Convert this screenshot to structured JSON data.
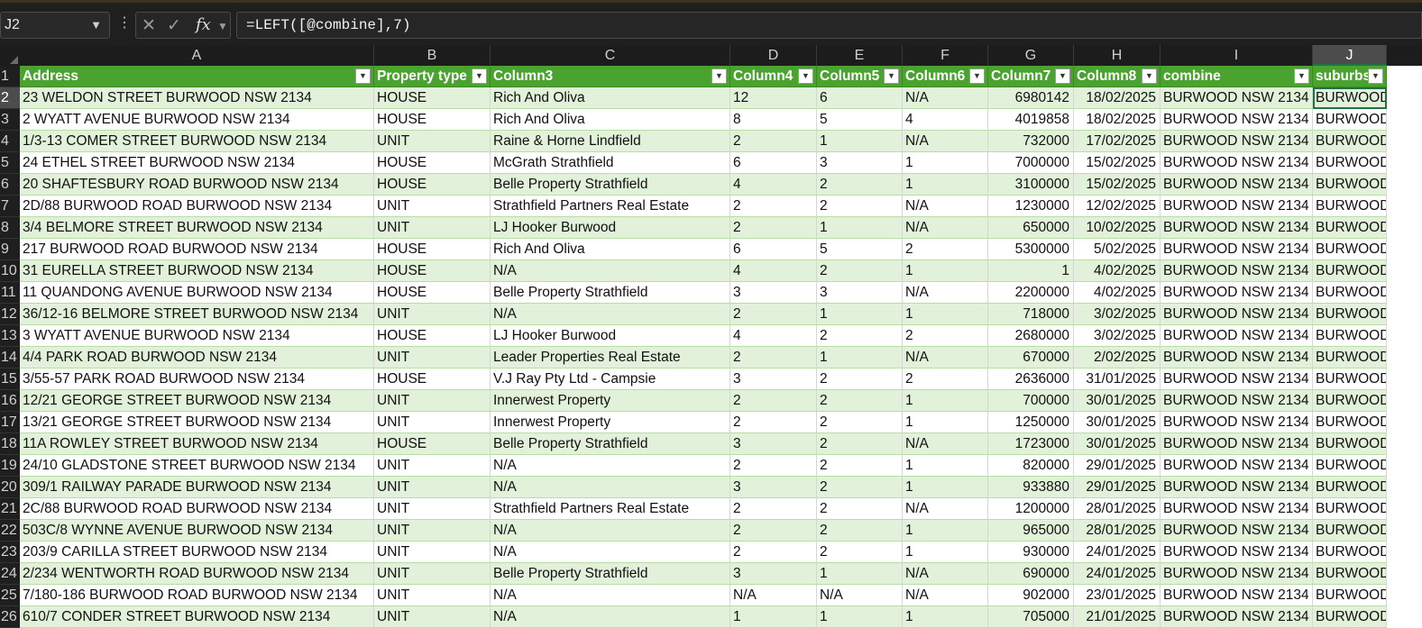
{
  "name_box": {
    "value": "J2"
  },
  "formula_bar": {
    "more_glyph": "⋮",
    "cancel_glyph": "✕",
    "enter_glyph": "✓",
    "fx_label": "fx",
    "formula": "=LEFT([@combine],7)"
  },
  "columns": [
    "A",
    "B",
    "C",
    "D",
    "E",
    "F",
    "G",
    "H",
    "I",
    "J"
  ],
  "selected_column": "J",
  "row_numbers": [
    "1",
    "2",
    "3",
    "4",
    "5",
    "6",
    "7",
    "8",
    "9",
    "10",
    "11",
    "12",
    "13",
    "14",
    "15",
    "16",
    "17",
    "18",
    "19",
    "20",
    "21",
    "22",
    "23",
    "24",
    "25",
    "26"
  ],
  "selected_row": "2",
  "table": {
    "headers": [
      "Address",
      "Property type",
      "Column3",
      "Column4",
      "Column5",
      "Column6",
      "Column7",
      "Column8",
      "combine",
      "suburbs"
    ],
    "rows": [
      [
        "23 WELDON STREET BURWOOD NSW 2134",
        "HOUSE",
        "Rich And Oliva",
        "12",
        "6",
        "N/A",
        "6980142",
        "18/02/2025",
        "BURWOOD NSW 2134",
        "BURWOOD"
      ],
      [
        "2 WYATT AVENUE BURWOOD NSW 2134",
        "HOUSE",
        "Rich And Oliva",
        "8",
        "5",
        "4",
        "4019858",
        "18/02/2025",
        "BURWOOD NSW 2134",
        "BURWOOD"
      ],
      [
        "1/3-13 COMER STREET BURWOOD NSW 2134",
        "UNIT",
        "Raine & Horne Lindfield",
        "2",
        "1",
        "N/A",
        "732000",
        "17/02/2025",
        "BURWOOD NSW 2134",
        "BURWOOD"
      ],
      [
        "24 ETHEL STREET BURWOOD NSW 2134",
        "HOUSE",
        "McGrath Strathfield",
        "6",
        "3",
        "1",
        "7000000",
        "15/02/2025",
        "BURWOOD NSW 2134",
        "BURWOOD"
      ],
      [
        "20 SHAFTESBURY ROAD BURWOOD NSW 2134",
        "HOUSE",
        "Belle Property Strathfield",
        "4",
        "2",
        "1",
        "3100000",
        "15/02/2025",
        "BURWOOD NSW 2134",
        "BURWOOD"
      ],
      [
        "2D/88 BURWOOD ROAD BURWOOD NSW 2134",
        "UNIT",
        "Strathfield Partners Real Estate",
        "2",
        "2",
        "N/A",
        "1230000",
        "12/02/2025",
        "BURWOOD NSW 2134",
        "BURWOOD"
      ],
      [
        "3/4 BELMORE STREET BURWOOD NSW 2134",
        "UNIT",
        "LJ Hooker Burwood",
        "2",
        "1",
        "N/A",
        "650000",
        "10/02/2025",
        "BURWOOD NSW 2134",
        "BURWOOD"
      ],
      [
        "217 BURWOOD ROAD BURWOOD NSW 2134",
        "HOUSE",
        "Rich And Oliva",
        "6",
        "5",
        "2",
        "5300000",
        "5/02/2025",
        "BURWOOD NSW 2134",
        "BURWOOD"
      ],
      [
        "31 EURELLA STREET BURWOOD NSW 2134",
        "HOUSE",
        "N/A",
        "4",
        "2",
        "1",
        "1",
        "4/02/2025",
        "BURWOOD NSW 2134",
        "BURWOOD"
      ],
      [
        "11 QUANDONG AVENUE BURWOOD NSW 2134",
        "HOUSE",
        "Belle Property Strathfield",
        "3",
        "3",
        "N/A",
        "2200000",
        "4/02/2025",
        "BURWOOD NSW 2134",
        "BURWOOD"
      ],
      [
        "36/12-16 BELMORE STREET BURWOOD NSW 2134",
        "UNIT",
        "N/A",
        "2",
        "1",
        "1",
        "718000",
        "3/02/2025",
        "BURWOOD NSW 2134",
        "BURWOOD"
      ],
      [
        "3 WYATT AVENUE BURWOOD NSW 2134",
        "HOUSE",
        "LJ Hooker Burwood",
        "4",
        "2",
        "2",
        "2680000",
        "3/02/2025",
        "BURWOOD NSW 2134",
        "BURWOOD"
      ],
      [
        "4/4 PARK ROAD BURWOOD NSW 2134",
        "UNIT",
        "Leader Properties Real Estate",
        "2",
        "1",
        "N/A",
        "670000",
        "2/02/2025",
        "BURWOOD NSW 2134",
        "BURWOOD"
      ],
      [
        "3/55-57 PARK ROAD BURWOOD NSW 2134",
        "HOUSE",
        "V.J Ray Pty Ltd - Campsie",
        "3",
        "2",
        "2",
        "2636000",
        "31/01/2025",
        "BURWOOD NSW 2134",
        "BURWOOD"
      ],
      [
        "12/21 GEORGE STREET BURWOOD NSW 2134",
        "UNIT",
        "Innerwest Property",
        "2",
        "2",
        "1",
        "700000",
        "30/01/2025",
        "BURWOOD NSW 2134",
        "BURWOOD"
      ],
      [
        "13/21 GEORGE STREET BURWOOD NSW 2134",
        "UNIT",
        "Innerwest Property",
        "2",
        "2",
        "1",
        "1250000",
        "30/01/2025",
        "BURWOOD NSW 2134",
        "BURWOOD"
      ],
      [
        "11A ROWLEY STREET BURWOOD NSW 2134",
        "HOUSE",
        "Belle Property Strathfield",
        "3",
        "2",
        "N/A",
        "1723000",
        "30/01/2025",
        "BURWOOD NSW 2134",
        "BURWOOD"
      ],
      [
        "24/10 GLADSTONE STREET BURWOOD NSW 2134",
        "UNIT",
        "N/A",
        "2",
        "2",
        "1",
        "820000",
        "29/01/2025",
        "BURWOOD NSW 2134",
        "BURWOOD"
      ],
      [
        "309/1 RAILWAY PARADE BURWOOD NSW 2134",
        "UNIT",
        "N/A",
        "3",
        "2",
        "1",
        "933880",
        "29/01/2025",
        "BURWOOD NSW 2134",
        "BURWOOD"
      ],
      [
        "2C/88 BURWOOD ROAD BURWOOD NSW 2134",
        "UNIT",
        "Strathfield Partners Real Estate",
        "2",
        "2",
        "N/A",
        "1200000",
        "28/01/2025",
        "BURWOOD NSW 2134",
        "BURWOOD"
      ],
      [
        "503C/8 WYNNE AVENUE BURWOOD NSW 2134",
        "UNIT",
        "N/A",
        "2",
        "2",
        "1",
        "965000",
        "28/01/2025",
        "BURWOOD NSW 2134",
        "BURWOOD"
      ],
      [
        "203/9 CARILLA STREET BURWOOD NSW 2134",
        "UNIT",
        "N/A",
        "2",
        "2",
        "1",
        "930000",
        "24/01/2025",
        "BURWOOD NSW 2134",
        "BURWOOD"
      ],
      [
        "2/234 WENTWORTH ROAD BURWOOD NSW 2134",
        "UNIT",
        "Belle Property Strathfield",
        "3",
        "1",
        "N/A",
        "690000",
        "24/01/2025",
        "BURWOOD NSW 2134",
        "BURWOOD"
      ],
      [
        "7/180-186 BURWOOD ROAD BURWOOD NSW 2134",
        "UNIT",
        "N/A",
        "N/A",
        "N/A",
        "N/A",
        "902000",
        "23/01/2025",
        "BURWOOD NSW 2134",
        "BURWOOD"
      ],
      [
        "610/7 CONDER STREET BURWOOD NSW 2134",
        "UNIT",
        "N/A",
        "1",
        "1",
        "1",
        "705000",
        "21/01/2025",
        "BURWOOD NSW 2134",
        "BURWOOD"
      ]
    ]
  },
  "colors": {
    "header_green": "#4aa22f",
    "band_green": "#e2f1d9",
    "selection_green": "#217346"
  }
}
